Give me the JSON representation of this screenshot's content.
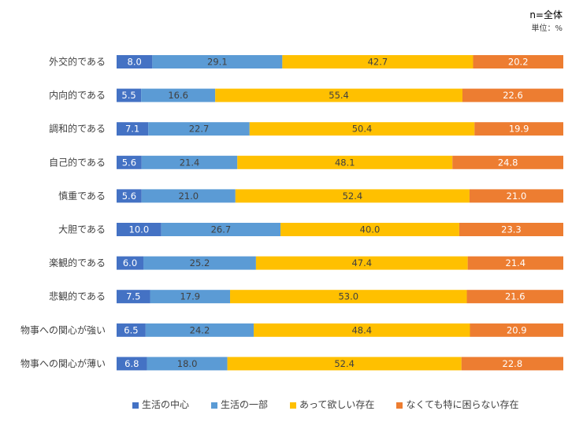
{
  "chart_data": {
    "type": "bar",
    "orientation": "horizontal",
    "stacked": "percent",
    "annotations": {
      "sample": "n=全体",
      "unit": "単位：%"
    },
    "categories": [
      "外交的である",
      "内向的である",
      "調和的である",
      "自己的である",
      "慎重である",
      "大胆である",
      "楽観的である",
      "悲観的である",
      "物事への関心が強い",
      "物事への関心が薄い"
    ],
    "series": [
      {
        "name": "生活の中心",
        "color": "#4472C4",
        "label_color": "#ffffff",
        "values": [
          8.0,
          5.5,
          7.1,
          5.6,
          5.6,
          10.0,
          6.0,
          7.5,
          6.5,
          6.8
        ]
      },
      {
        "name": "生活の一部",
        "color": "#5B9BD5",
        "label_color": "#404040",
        "values": [
          29.1,
          16.6,
          22.7,
          21.4,
          21.0,
          26.7,
          25.2,
          17.9,
          24.2,
          18.0
        ]
      },
      {
        "name": "あって欲しい存在",
        "color": "#FFC000",
        "label_color": "#404040",
        "values": [
          42.7,
          55.4,
          50.4,
          48.1,
          52.4,
          40.0,
          47.4,
          53.0,
          48.4,
          52.4
        ]
      },
      {
        "name": "なくても特に困らない存在",
        "color": "#ED7D31",
        "label_color": "#ffffff",
        "values": [
          20.2,
          22.6,
          19.9,
          24.8,
          21.0,
          23.3,
          21.4,
          21.6,
          20.9,
          22.8
        ]
      }
    ],
    "xlim": [
      0,
      100
    ],
    "grid": false,
    "legend_position": "bottom"
  }
}
